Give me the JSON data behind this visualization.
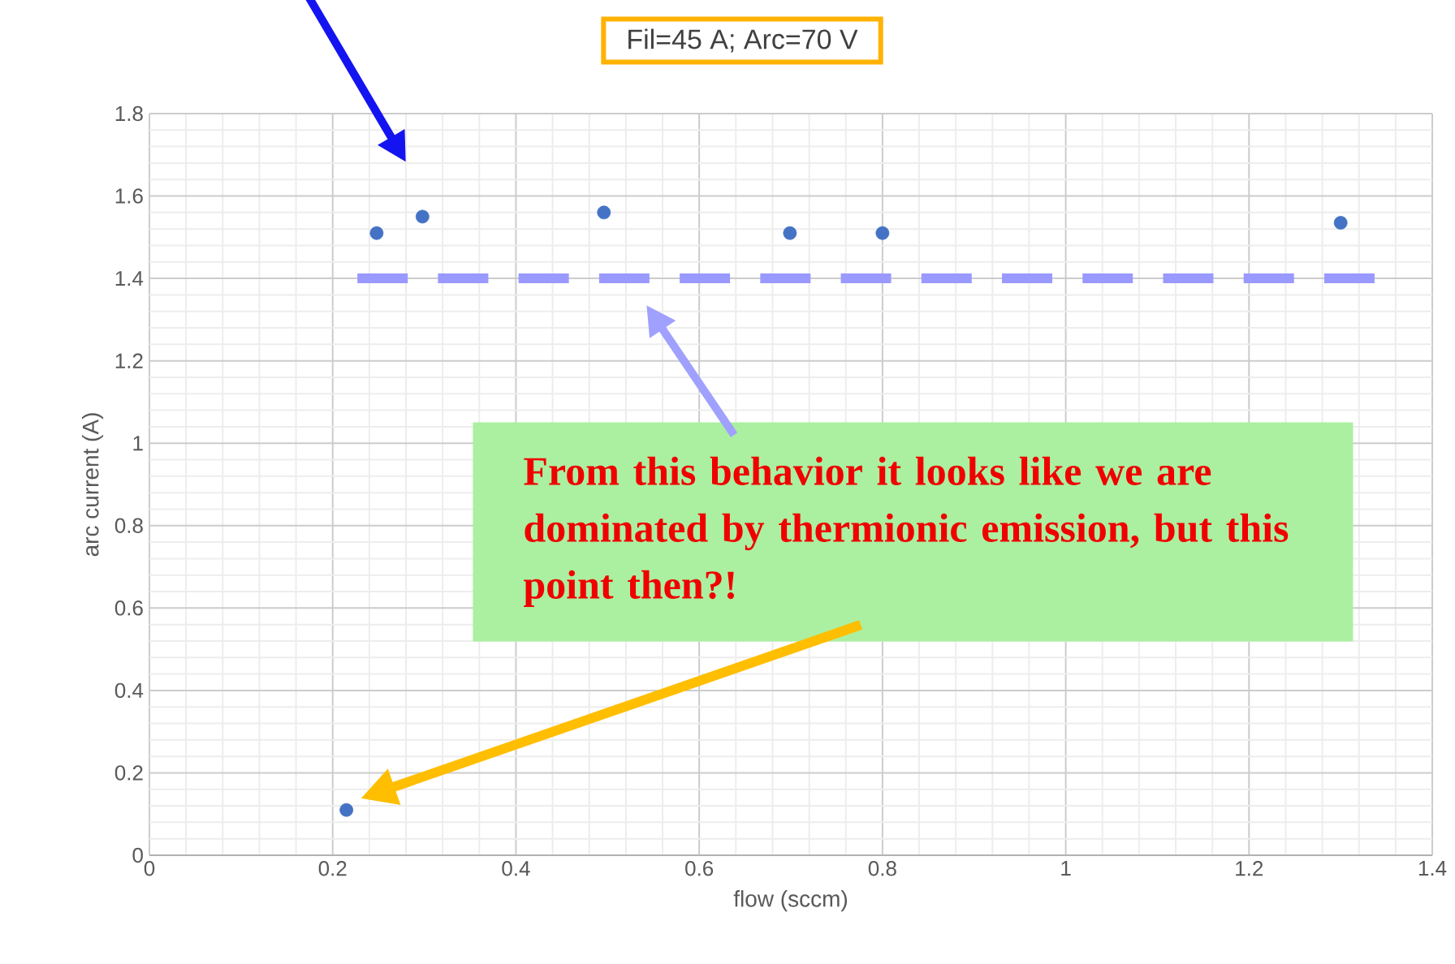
{
  "chart_data": {
    "type": "scatter",
    "title": "Fil=45 A; Arc=70 V",
    "xlabel": "flow (sccm)",
    "ylabel": "arc current (A)",
    "annotations": [
      "From this behavior it looks like we are dominated by thermionic emission, but this point then?!"
    ],
    "xlim": [
      0,
      1.4
    ],
    "ylim": [
      0,
      1.8
    ],
    "xticks": [
      0,
      0.2,
      0.4,
      0.6,
      0.8,
      1,
      1.2,
      1.4
    ],
    "yticks": [
      0,
      0.2,
      0.4,
      0.6,
      0.8,
      1,
      1.2,
      1.4,
      1.6,
      1.8
    ],
    "grid": true,
    "series": [
      {
        "marker": "circle",
        "color": "#4472c4",
        "x": [
          0.248,
          0.298,
          0.496,
          0.699,
          0.8,
          1.3,
          0.215
        ],
        "values": [
          1.51,
          1.55,
          1.56,
          1.51,
          1.51,
          1.535,
          0.11
        ]
      },
      {
        "type": "line",
        "marker": "none",
        "line_style": "dashed",
        "color": "#9999ff",
        "x": [
          0.227,
          1.337
        ],
        "values": [
          1.4,
          1.4
        ]
      }
    ]
  }
}
